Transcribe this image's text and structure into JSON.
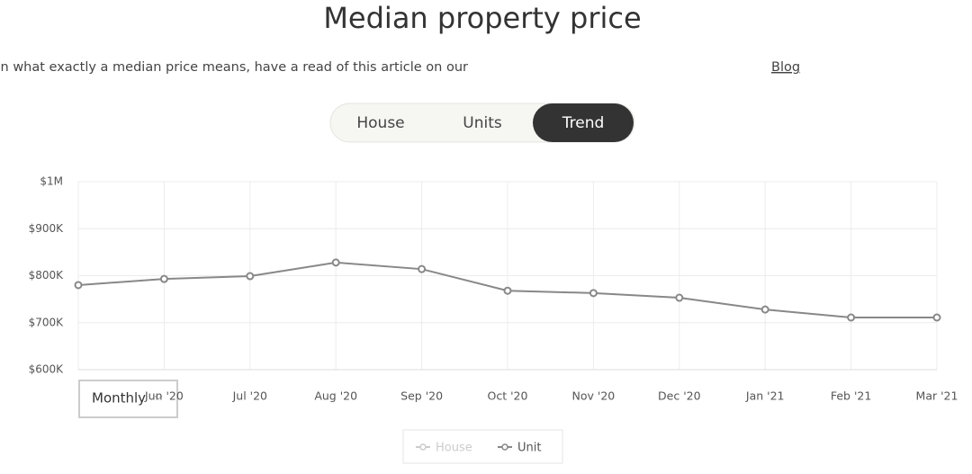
{
  "header": {
    "title": "Median property price",
    "subtitle": "For more information on what exactly a median price means, have a read of this article on our",
    "link": "Blog"
  },
  "tabs": [
    {
      "label": "House",
      "active": false
    },
    {
      "label": "Units",
      "active": false
    },
    {
      "label": "Trend",
      "active": true
    }
  ],
  "period_select": "Monthly",
  "chart_data": {
    "type": "line",
    "categories": [
      null,
      "Jun '20",
      "Jul '20",
      "Aug '20",
      "Sep '20",
      "Oct '20",
      "Nov '20",
      "Dec '20",
      "Jan '21",
      "Feb '21",
      "Mar '21"
    ],
    "series": [
      {
        "name": "House",
        "color": "#cccccc",
        "hidden": true,
        "values": [
          null,
          null,
          null,
          null,
          null,
          null,
          null,
          null,
          null,
          null,
          null
        ]
      },
      {
        "name": "Unit",
        "color": "#888888",
        "hidden": false,
        "values": [
          780000,
          793000,
          799000,
          828000,
          814000,
          768000,
          763000,
          753000,
          728000,
          711000,
          711000
        ]
      }
    ],
    "ylim": [
      600000,
      1000000
    ],
    "yticks": [
      {
        "value": 600000,
        "label": "$600K"
      },
      {
        "value": 700000,
        "label": "$700K"
      },
      {
        "value": 800000,
        "label": "$800K"
      },
      {
        "value": 900000,
        "label": "$900K"
      },
      {
        "value": 1000000,
        "label": "$1M"
      }
    ],
    "grid": true,
    "legend": "bottom"
  }
}
